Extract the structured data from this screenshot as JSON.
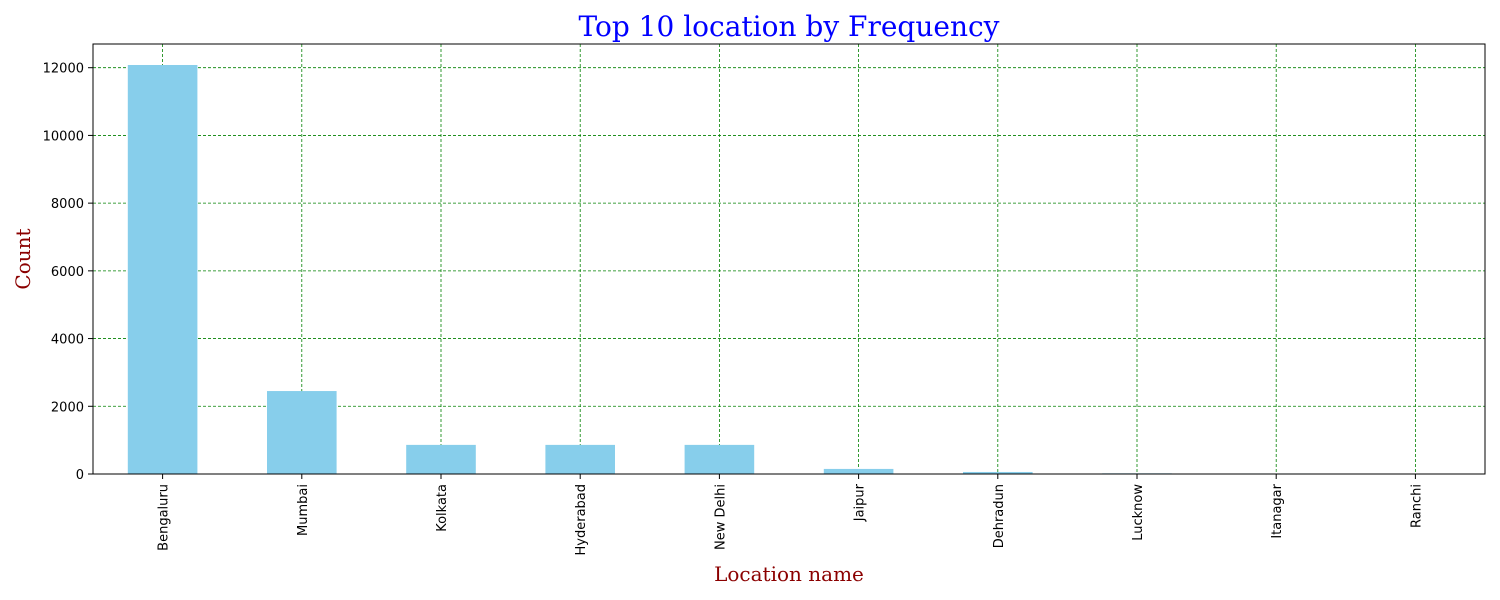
{
  "chart_data": {
    "type": "bar",
    "title": "Top 10 location by Frequency",
    "xlabel": "Location name",
    "ylabel": "Count",
    "categories": [
      "Bengaluru",
      "Mumbai",
      "Kolkata",
      "Hyderabad",
      "New Delhi",
      "Jaipur",
      "Dehradun",
      "Lucknow",
      "Itanagar",
      "Ranchi"
    ],
    "values": [
      12080,
      2450,
      860,
      860,
      860,
      150,
      60,
      20,
      15,
      10
    ],
    "ylim": [
      0,
      12700
    ],
    "yticks": [
      0,
      2000,
      4000,
      6000,
      8000,
      10000,
      12000
    ],
    "grid": true,
    "colors": {
      "bar": "#87ceeb",
      "title": "#0000ff",
      "axis_label": "#8b0000",
      "grid": "#008000"
    }
  }
}
